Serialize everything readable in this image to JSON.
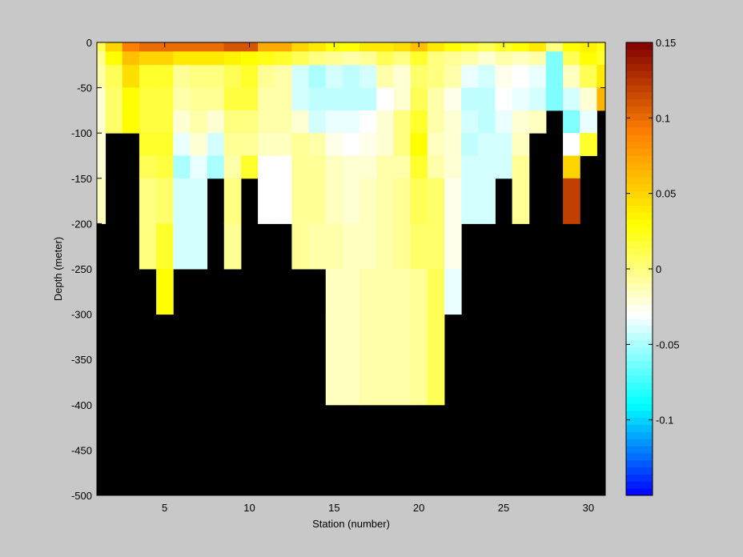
{
  "chart_data": {
    "type": "heatmap",
    "title": "",
    "xlabel": "Station (number)",
    "ylabel": "Depth (meter)",
    "xlim": [
      1,
      31
    ],
    "ylim": [
      -500,
      0
    ],
    "x_ticks": [
      5,
      10,
      15,
      20,
      25,
      30
    ],
    "y_ticks": [
      0,
      -50,
      -100,
      -150,
      -200,
      -250,
      -300,
      -350,
      -400,
      -450,
      -500
    ],
    "stations": [
      1,
      2,
      3,
      4,
      5,
      6,
      7,
      8,
      9,
      10,
      11,
      12,
      13,
      14,
      15,
      16,
      17,
      18,
      19,
      20,
      21,
      22,
      23,
      24,
      25,
      26,
      27,
      28,
      29,
      30,
      31
    ],
    "depth_levels": [
      0,
      -10,
      -25,
      -50,
      -75,
      -100,
      -125,
      -150,
      -200,
      -250,
      -300,
      -400
    ],
    "values": [
      [
        0.01,
        -0.005,
        -0.01,
        -0.02,
        -0.02,
        -0.02,
        -0.02,
        -0.015,
        null,
        null,
        null
      ],
      [
        0.05,
        0.03,
        0.01,
        0.005,
        0.005,
        null,
        null,
        null,
        null,
        null,
        null
      ],
      [
        0.09,
        0.06,
        0.045,
        0.03,
        0.03,
        null,
        null,
        null,
        null,
        null,
        null
      ],
      [
        0.1,
        0.05,
        0.02,
        0.015,
        0.015,
        0.02,
        0.01,
        0.0,
        0.0,
        null,
        null
      ],
      [
        0.1,
        0.05,
        0.02,
        0.015,
        0.015,
        0.02,
        0.015,
        0.005,
        0.02,
        0.03,
        null
      ],
      [
        0.1,
        0.04,
        -0.005,
        -0.01,
        -0.02,
        -0.035,
        -0.05,
        -0.04,
        -0.04,
        null,
        null
      ],
      [
        0.1,
        0.04,
        0.0,
        -0.005,
        -0.01,
        -0.02,
        -0.035,
        -0.04,
        -0.04,
        null,
        null
      ],
      [
        0.1,
        0.04,
        0.0,
        -0.005,
        -0.02,
        -0.04,
        -0.05,
        null,
        null,
        null,
        null
      ],
      [
        0.11,
        0.035,
        0.01,
        0.015,
        0.0,
        -0.005,
        -0.01,
        0.0,
        -0.005,
        null,
        null
      ],
      [
        0.11,
        0.03,
        0.02,
        0.015,
        0.0,
        -0.005,
        0.02,
        null,
        null,
        null,
        null
      ],
      [
        0.07,
        0.025,
        -0.005,
        -0.01,
        -0.01,
        -0.015,
        -0.03,
        -0.03,
        null,
        null,
        null
      ],
      [
        0.07,
        0.02,
        -0.01,
        -0.01,
        -0.01,
        -0.015,
        -0.03,
        -0.03,
        null,
        null,
        null
      ],
      [
        0.05,
        0.01,
        -0.04,
        -0.04,
        -0.02,
        -0.005,
        -0.005,
        -0.005,
        -0.005,
        null,
        null
      ],
      [
        0.04,
        0.0,
        -0.05,
        -0.045,
        -0.04,
        -0.01,
        -0.005,
        -0.005,
        -0.01,
        null,
        null
      ],
      [
        0.03,
        -0.005,
        -0.04,
        -0.045,
        -0.035,
        -0.025,
        -0.015,
        -0.015,
        -0.01,
        -0.015,
        -0.015
      ],
      [
        0.03,
        -0.01,
        -0.045,
        -0.045,
        -0.035,
        -0.03,
        -0.02,
        -0.02,
        -0.015,
        -0.015,
        -0.015
      ],
      [
        0.04,
        -0.005,
        -0.04,
        -0.045,
        -0.03,
        -0.025,
        -0.02,
        -0.015,
        -0.015,
        -0.01,
        -0.01
      ],
      [
        0.04,
        0.01,
        -0.01,
        -0.03,
        -0.02,
        -0.02,
        -0.01,
        -0.01,
        -0.01,
        -0.01,
        -0.01
      ],
      [
        0.045,
        0.0,
        -0.02,
        -0.02,
        0.0,
        0.0,
        -0.01,
        -0.005,
        -0.005,
        -0.01,
        -0.01
      ],
      [
        0.06,
        0.02,
        0.005,
        0.01,
        0.02,
        0.03,
        0.02,
        0.01,
        0.005,
        -0.005,
        -0.005
      ],
      [
        0.04,
        0.0,
        0.0,
        -0.01,
        -0.01,
        -0.015,
        -0.01,
        0.005,
        0.005,
        0.01,
        0.01
      ],
      [
        0.03,
        -0.005,
        -0.01,
        -0.025,
        -0.02,
        -0.02,
        -0.02,
        -0.025,
        -0.025,
        -0.035,
        null
      ],
      [
        0.02,
        -0.01,
        -0.035,
        -0.045,
        -0.04,
        -0.045,
        -0.04,
        -0.04,
        null,
        null,
        null
      ],
      [
        0.01,
        -0.02,
        -0.04,
        -0.045,
        -0.045,
        -0.04,
        -0.04,
        -0.04,
        null,
        null,
        null
      ],
      [
        0.02,
        -0.01,
        -0.025,
        -0.03,
        -0.035,
        -0.04,
        -0.04,
        null,
        null,
        null,
        null
      ],
      [
        0.03,
        -0.015,
        -0.03,
        -0.035,
        -0.02,
        -0.015,
        -0.005,
        -0.005,
        null,
        null,
        null
      ],
      [
        0.04,
        -0.01,
        -0.035,
        -0.04,
        -0.015,
        null,
        null,
        null,
        null,
        null,
        null
      ],
      [
        0.0,
        -0.06,
        -0.06,
        -0.06,
        null,
        null,
        null,
        null,
        null,
        null,
        null
      ],
      [
        0.03,
        0.01,
        -0.015,
        -0.04,
        -0.06,
        -0.03,
        0.05,
        0.12,
        null,
        null,
        null
      ],
      [
        0.035,
        0.03,
        0.01,
        -0.02,
        -0.035,
        0.02,
        null,
        null,
        null,
        null,
        null
      ],
      [
        0.025,
        0.02,
        0.04,
        0.065,
        null,
        null,
        null,
        null,
        null,
        null,
        null
      ]
    ],
    "missing_color": "#000000",
    "colorbar": {
      "clim": [
        -0.15,
        0.15
      ],
      "ticks": [
        0.15,
        0.1,
        0.05,
        0,
        -0.05,
        -0.1
      ],
      "tick_labels": [
        "0.15",
        "0.1",
        "0.05",
        "0",
        "-0.05",
        "-0.1"
      ],
      "colors": [
        "#0000ff",
        "#00ffff",
        "#ffffff",
        "#ffff00",
        "#ff8000",
        "#800000"
      ]
    }
  }
}
